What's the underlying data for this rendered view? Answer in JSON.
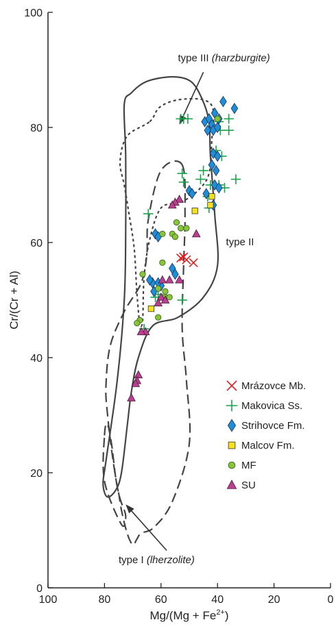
{
  "chart_data": {
    "type": "scatter",
    "xlabel": "Mg/(Mg + Fe",
    "xlabel_sup": "2+",
    "xlabel_end": ")",
    "ylabel": "Cr/(Cr + Al)",
    "xlim": [
      100,
      0
    ],
    "ylim": [
      0,
      100
    ],
    "x_reversed": true,
    "xticks": [
      100,
      80,
      60,
      40,
      20,
      0
    ],
    "yticks": [
      0,
      20,
      40,
      60,
      80,
      100
    ],
    "grid": false,
    "legend_position": "right",
    "annotations": [
      {
        "id": "t3a",
        "text": "type III ",
        "x": 54,
        "y": 91.5
      },
      {
        "id": "t3b",
        "text": "(harzburgite)",
        "italic": true
      },
      {
        "id": "t2",
        "text": "type II",
        "x": 37,
        "y": 59.5
      },
      {
        "id": "t1a",
        "text": "type I ",
        "x": 75,
        "y": 4.3
      },
      {
        "id": "t1b",
        "text": "(lherzolite)",
        "italic": true
      }
    ],
    "fields": [
      {
        "style": "solid",
        "points": [
          [
            70.5,
            86
          ],
          [
            65,
            88
          ],
          [
            56,
            88.8
          ],
          [
            49.5,
            88
          ],
          [
            45.5,
            85
          ],
          [
            43,
            81
          ],
          [
            42.5,
            75
          ],
          [
            41,
            65
          ],
          [
            40,
            56
          ],
          [
            45,
            50.5
          ],
          [
            54,
            47
          ],
          [
            63,
            45.5
          ],
          [
            68,
            40
          ],
          [
            70.5,
            34
          ],
          [
            72,
            28
          ],
          [
            74,
            20
          ],
          [
            76,
            17
          ],
          [
            79,
            15.8
          ],
          [
            80.5,
            18
          ],
          [
            79.5,
            22
          ],
          [
            75.5,
            36
          ],
          [
            73,
            50
          ],
          [
            72.5,
            62
          ],
          [
            72.5,
            75
          ],
          [
            73,
            84
          ]
        ]
      },
      {
        "style": "dotted",
        "points": [
          [
            64,
            81
          ],
          [
            60.5,
            83.5
          ],
          [
            54,
            84.8
          ],
          [
            45,
            84.8
          ],
          [
            41.5,
            83
          ],
          [
            42,
            78
          ],
          [
            43,
            72
          ],
          [
            47,
            69
          ],
          [
            53,
            67
          ],
          [
            60,
            66
          ],
          [
            64,
            60.5
          ],
          [
            66,
            54
          ],
          [
            66.5,
            46.5
          ],
          [
            67.5,
            46
          ],
          [
            68.5,
            51
          ],
          [
            69.5,
            59
          ],
          [
            71.5,
            65.5
          ],
          [
            73,
            70
          ],
          [
            74.5,
            74
          ],
          [
            72,
            78.5
          ]
        ]
      },
      {
        "style": "dashed",
        "points": [
          [
            52.5,
            73.5
          ],
          [
            51.5,
            65
          ],
          [
            52,
            56
          ],
          [
            52.5,
            45
          ],
          [
            51,
            36
          ],
          [
            50,
            25
          ],
          [
            56,
            15
          ],
          [
            62.5,
            10.5
          ],
          [
            67,
            9.5
          ],
          [
            68.5,
            8.5
          ],
          [
            70,
            7.5
          ],
          [
            72,
            9.5
          ],
          [
            74,
            13.5
          ],
          [
            75,
            16.5
          ],
          [
            76,
            19
          ],
          [
            77.5,
            24
          ],
          [
            79,
            30.5
          ],
          [
            79.5,
            35
          ],
          [
            78,
            42
          ],
          [
            73,
            48
          ],
          [
            67,
            53
          ],
          [
            65,
            58
          ],
          [
            64.5,
            64
          ],
          [
            60,
            72.5
          ]
        ]
      },
      {
        "style": "dashed",
        "points": [
          [
            80,
            26.5
          ],
          [
            79,
            28.5
          ],
          [
            77.5,
            25
          ],
          [
            76,
            19
          ],
          [
            74.5,
            15.5
          ],
          [
            72.5,
            12.5
          ],
          [
            74,
            11
          ],
          [
            80,
            18.5
          ]
        ]
      }
    ],
    "arrows": [
      {
        "from": [
          45,
          89.6
        ],
        "to": [
          53.5,
          80.5
        ]
      },
      {
        "from": [
          58,
          6.5
        ],
        "to": [
          72.5,
          14.5
        ]
      }
    ],
    "series": [
      {
        "name": "Mrázovce Mb.",
        "marker": "x",
        "color": "#e02020",
        "points": [
          [
            52,
            57.5
          ],
          [
            51,
            57
          ],
          [
            48.5,
            56.5
          ],
          [
            53,
            57.3
          ]
        ]
      },
      {
        "name": "Makovica Ss.",
        "marker": "plus",
        "color": "#17a34a",
        "points": [
          [
            52,
            81.5
          ],
          [
            53,
            81.5
          ],
          [
            50.5,
            81.5
          ],
          [
            39.5,
            81
          ],
          [
            36,
            81.5
          ],
          [
            39,
            79.5
          ],
          [
            36,
            79.5
          ],
          [
            40.5,
            76
          ],
          [
            38.5,
            75
          ],
          [
            52.5,
            72
          ],
          [
            52,
            70.5
          ],
          [
            45,
            72.5
          ],
          [
            46,
            71
          ],
          [
            42.5,
            70
          ],
          [
            39.5,
            70
          ],
          [
            37.5,
            69.5
          ],
          [
            33.5,
            71
          ],
          [
            43.5,
            68
          ],
          [
            43,
            66
          ],
          [
            64.5,
            65
          ],
          [
            52.5,
            50
          ],
          [
            61,
            51
          ],
          [
            62,
            50.5
          ],
          [
            66,
            45
          ]
        ]
      },
      {
        "name": "Strihovce Fm.",
        "marker": "diamond",
        "color": "#1e8fd6",
        "points": [
          [
            38,
            84.5
          ],
          [
            34,
            83.3
          ],
          [
            44.5,
            81
          ],
          [
            42,
            80.5
          ],
          [
            43.5,
            79.5
          ],
          [
            41.5,
            79.5
          ],
          [
            40,
            80
          ],
          [
            39.5,
            81.5
          ],
          [
            41,
            82.5
          ],
          [
            43,
            81.5
          ],
          [
            41.5,
            75.5
          ],
          [
            40,
            75
          ],
          [
            42,
            73.5
          ],
          [
            40.5,
            72.5
          ],
          [
            41,
            70
          ],
          [
            39.5,
            69.5
          ],
          [
            44,
            68.5
          ],
          [
            41.5,
            66.5
          ],
          [
            50,
            69
          ],
          [
            49,
            68.5
          ],
          [
            62,
            61.5
          ],
          [
            61,
            61
          ],
          [
            56,
            55.5
          ],
          [
            55,
            54.5
          ],
          [
            63,
            53
          ],
          [
            64,
            53.5
          ],
          [
            60,
            52.5
          ],
          [
            62.5,
            51.5
          ],
          [
            61,
            53
          ]
        ]
      },
      {
        "name": "Malcov Fm.",
        "marker": "square",
        "color": "#f5e11e",
        "points": [
          [
            48,
            65.5
          ],
          [
            42,
            68
          ],
          [
            42.5,
            66.5
          ],
          [
            63.5,
            48.5
          ]
        ]
      },
      {
        "name": "MF",
        "marker": "circle",
        "color": "#86c43a",
        "points": [
          [
            40,
            81.5
          ],
          [
            54.5,
            63.5
          ],
          [
            53,
            62.5
          ],
          [
            51,
            62.5
          ],
          [
            56,
            61.5
          ],
          [
            55,
            61
          ],
          [
            59.5,
            61.5
          ],
          [
            59.5,
            56.5
          ],
          [
            66.5,
            54.5
          ],
          [
            58.5,
            50.5
          ],
          [
            57,
            50.5
          ],
          [
            58.5,
            51.5
          ],
          [
            61,
            52
          ],
          [
            61,
            47
          ],
          [
            67.5,
            46.5
          ],
          [
            68.5,
            46
          ]
        ]
      },
      {
        "name": "SU",
        "marker": "triangle",
        "color": "#b8408f",
        "points": [
          [
            53.5,
            67.5
          ],
          [
            55,
            67
          ],
          [
            56,
            66.5
          ],
          [
            47.5,
            61.5
          ],
          [
            57,
            53.5
          ],
          [
            59.5,
            53.5
          ],
          [
            53.5,
            53.5
          ],
          [
            60,
            50.5
          ],
          [
            58.5,
            50
          ],
          [
            61,
            49.5
          ],
          [
            65.5,
            44.5
          ],
          [
            67,
            44.5
          ],
          [
            68,
            37
          ],
          [
            68.5,
            36
          ],
          [
            69,
            35.5
          ],
          [
            70.5,
            33
          ]
        ]
      }
    ]
  }
}
